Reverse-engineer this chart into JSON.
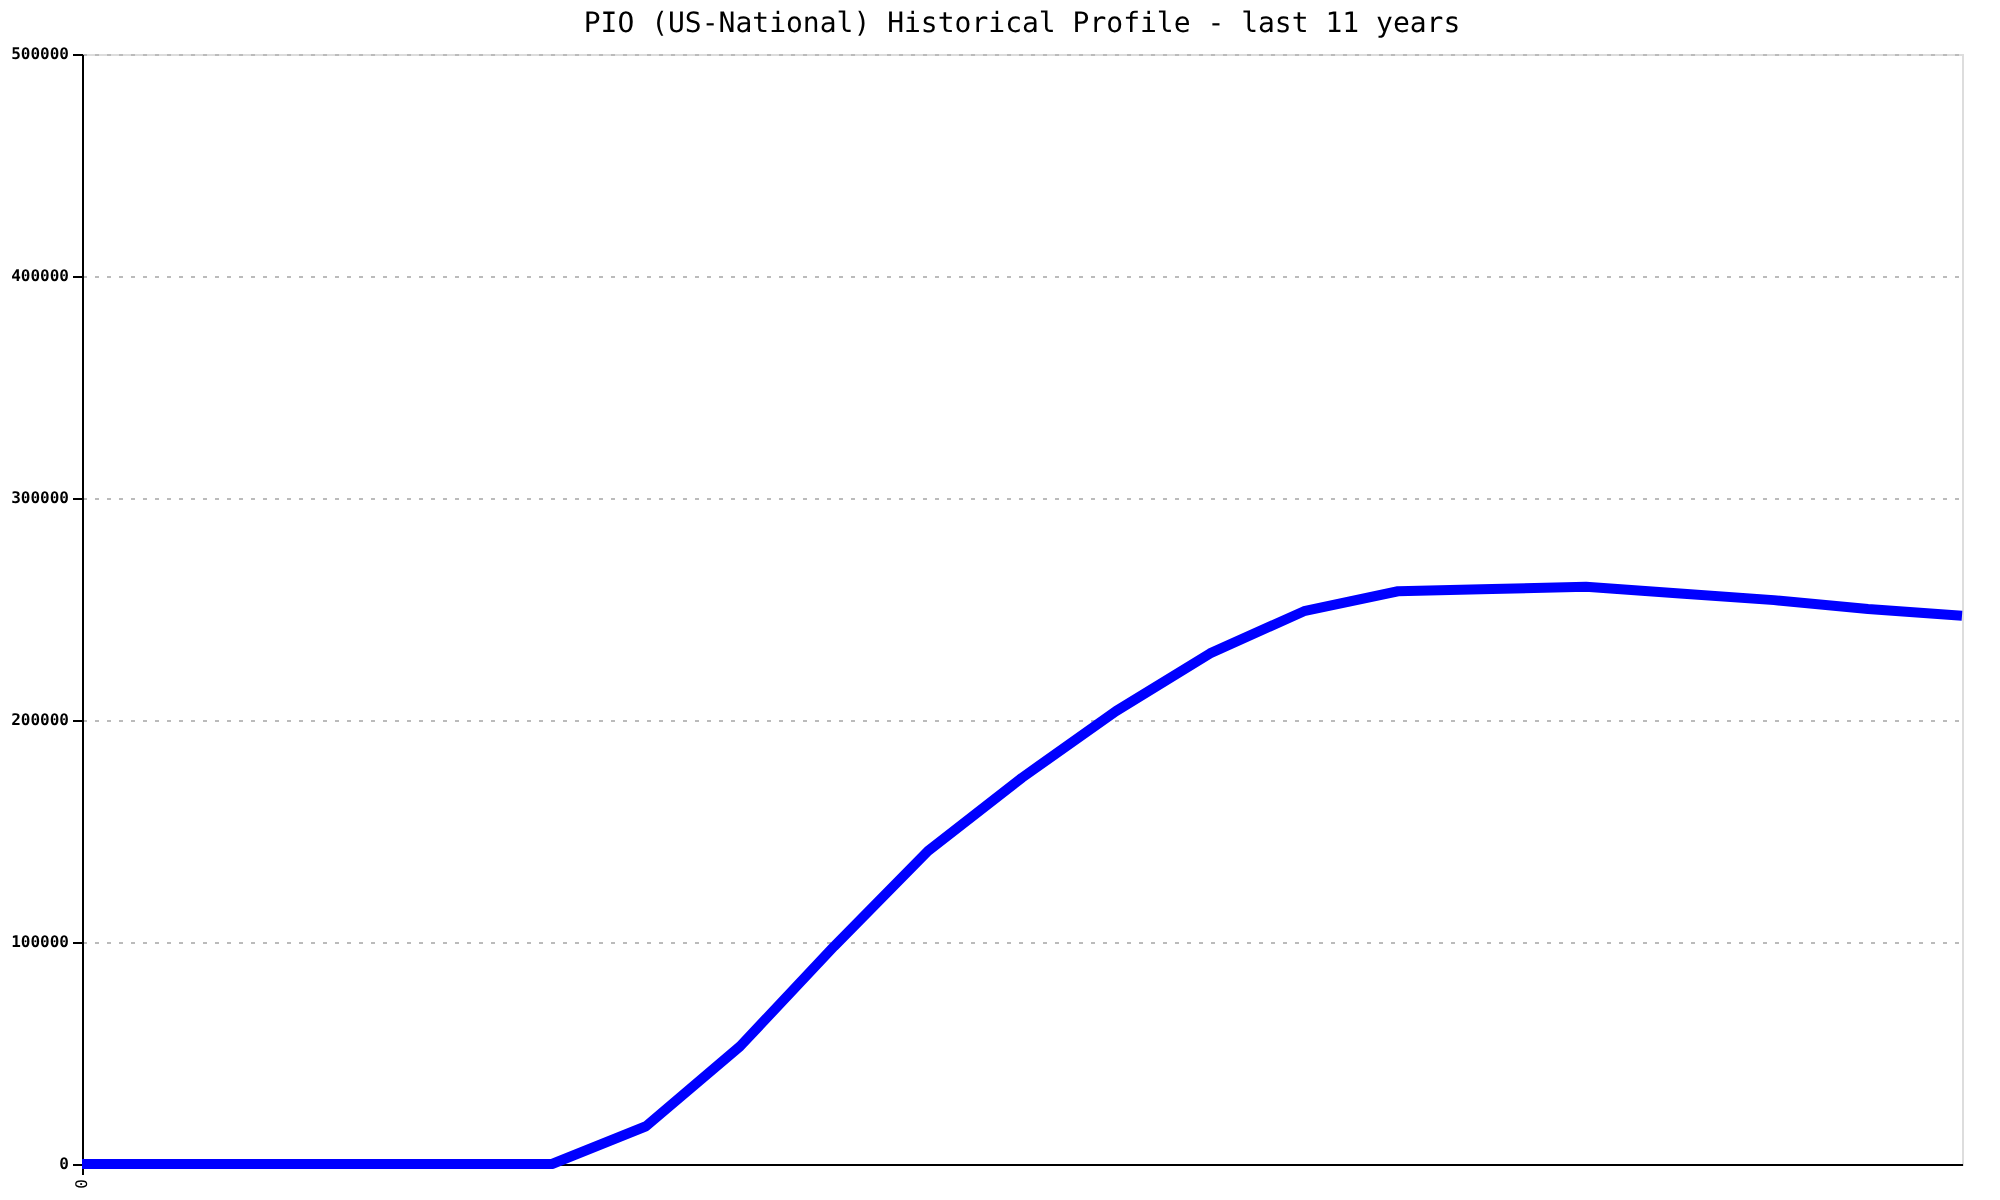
{
  "chart_data": {
    "type": "line",
    "title": "PIO (US-National) Historical Profile - last 11 years",
    "categories": [
      "0",
      null,
      null,
      null,
      null,
      null,
      null,
      null,
      null,
      null,
      null,
      null,
      null,
      null,
      null,
      null,
      null,
      null,
      null,
      null,
      null
    ],
    "series": [
      {
        "color": "#0000ff",
        "values": [
          0,
          0,
          0,
          0,
          0,
          0,
          17000,
          53000,
          98000,
          141000,
          174000,
          204000,
          230000,
          249000,
          258000,
          259000,
          260000,
          257000,
          254000,
          250000,
          247000
        ]
      }
    ],
    "ylim": [
      0,
      500000
    ],
    "yticks": [
      0,
      100000,
      200000,
      300000,
      400000,
      500000
    ],
    "grid": "y",
    "marker": "none",
    "line_style": "solid"
  }
}
